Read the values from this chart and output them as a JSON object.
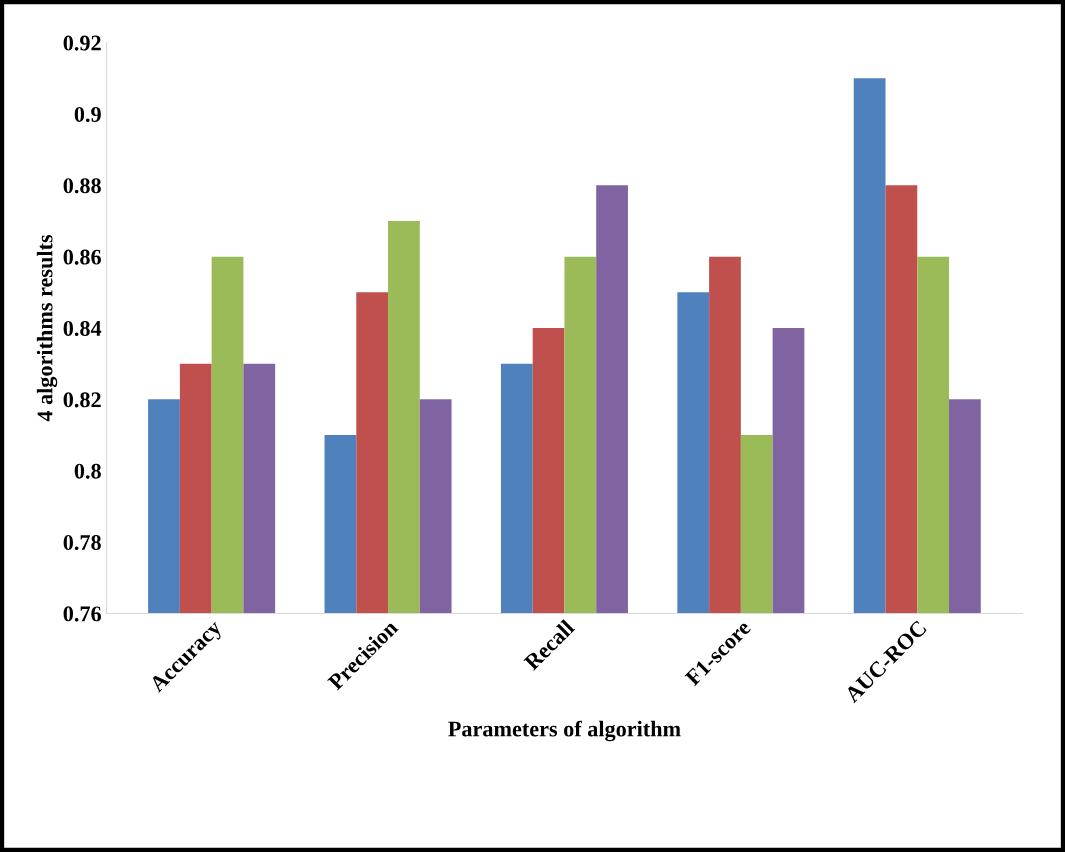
{
  "chart_data": {
    "type": "bar",
    "xlabel": "Parameters of algorithm",
    "ylabel": "4 algorithms results",
    "categories": [
      "Accuracy",
      "Precision",
      "Recall",
      "F1-score",
      "AUC-ROC"
    ],
    "series": [
      {
        "color": "#4f81bd",
        "values": [
          0.82,
          0.81,
          0.83,
          0.85,
          0.91
        ]
      },
      {
        "color": "#c0504d",
        "values": [
          0.83,
          0.85,
          0.84,
          0.86,
          0.88
        ]
      },
      {
        "color": "#9bbb59",
        "values": [
          0.86,
          0.87,
          0.86,
          0.81,
          0.86
        ]
      },
      {
        "color": "#8064a2",
        "values": [
          0.83,
          0.82,
          0.88,
          0.84,
          0.82
        ]
      }
    ],
    "ylim": [
      0.76,
      0.92
    ],
    "yticks": [
      0.76,
      0.78,
      0.8,
      0.82,
      0.84,
      0.86,
      0.88,
      0.9,
      0.92
    ],
    "grid": false
  }
}
